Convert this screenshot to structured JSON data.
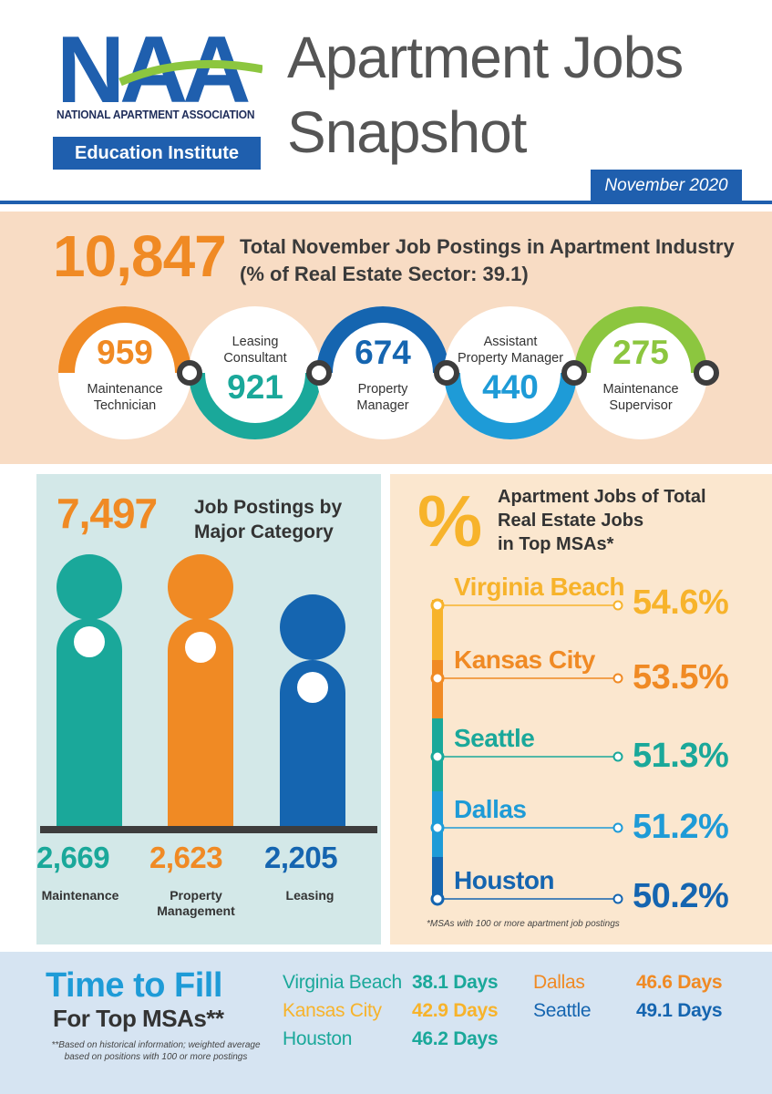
{
  "header": {
    "logo_letters": "NAA",
    "org_name": "NATIONAL APARTMENT ASSOCIATION",
    "edu_label": "Education Institute",
    "title_line1": "Apartment Jobs",
    "title_line2": "Snapshot",
    "date": "November 2020"
  },
  "summary": {
    "total": "10,847",
    "label_line1": "Total November Job Postings in Apartment Industry",
    "label_line2": "(% of Real Estate Sector: 39.1)"
  },
  "roles": [
    {
      "value": "959",
      "line1": "Maintenance",
      "line2": "Technician"
    },
    {
      "value": "921",
      "line1": "Leasing",
      "line2": "Consultant"
    },
    {
      "value": "674",
      "line1": "Property",
      "line2": "Manager"
    },
    {
      "value": "440",
      "line1": "Assistant",
      "line2": "Property Manager"
    },
    {
      "value": "275",
      "line1": "Maintenance",
      "line2": "Supervisor"
    }
  ],
  "colors": {
    "orange": "#f08a24",
    "teal": "#1aa89a",
    "blue": "#1565b0",
    "lightblue": "#1e9bd7",
    "green": "#8cc63f",
    "yellow": "#f7b32b"
  },
  "categories": {
    "total": "7,497",
    "title_line1": "Job Postings by",
    "title_line2": "Major Category",
    "items": [
      {
        "value": "2,669",
        "line1": "Maintenance",
        "line2": ""
      },
      {
        "value": "2,623",
        "line1": "Property",
        "line2": "Management"
      },
      {
        "value": "2,205",
        "line1": "Leasing",
        "line2": ""
      }
    ]
  },
  "msas": {
    "icon": "%",
    "title_line1": "Apartment Jobs of Total",
    "title_line2": "Real Estate Jobs",
    "title_line3": "in Top MSAs*",
    "items": [
      {
        "name": "Virginia Beach",
        "pct": "54.6%"
      },
      {
        "name": "Kansas City",
        "pct": "53.5%"
      },
      {
        "name": "Seattle",
        "pct": "51.3%"
      },
      {
        "name": "Dallas",
        "pct": "51.2%"
      },
      {
        "name": "Houston",
        "pct": "50.2%"
      }
    ],
    "note": "*MSAs with 100 or more apartment job postings"
  },
  "time_to_fill": {
    "title": "Time to Fill",
    "subtitle": "For Top MSAs**",
    "note": "**Based on historical information; weighted average based on positions with 100 or more postings",
    "items": [
      {
        "city": "Virginia Beach",
        "days": "38.1 Days"
      },
      {
        "city": "Kansas City",
        "days": "42.9 Days"
      },
      {
        "city": "Houston",
        "days": "46.2 Days"
      },
      {
        "city": "Dallas",
        "days": "46.6 Days"
      },
      {
        "city": "Seattle",
        "days": "49.1 Days"
      }
    ]
  }
}
